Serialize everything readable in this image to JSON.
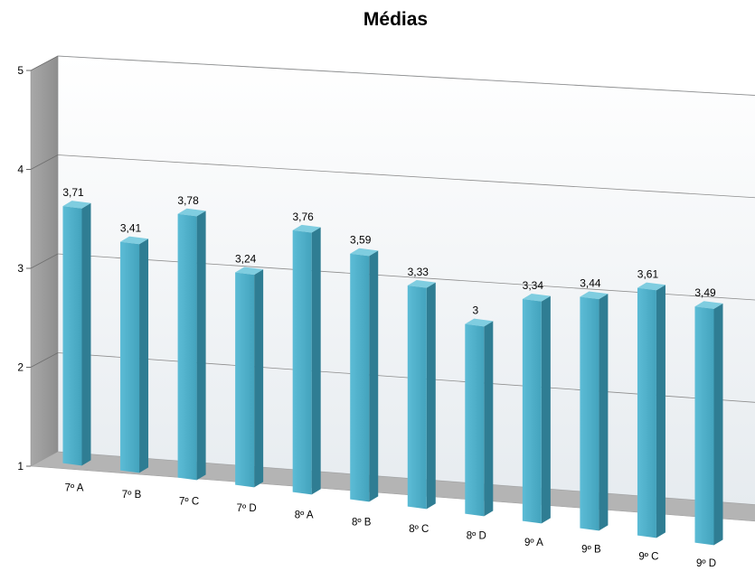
{
  "chart_data": {
    "type": "bar",
    "title": "Médias",
    "xlabel": "",
    "ylabel": "",
    "ylim": [
      1,
      5
    ],
    "y_ticks": [
      1,
      2,
      3,
      4,
      5
    ],
    "grid": true,
    "legend": "none",
    "categories": [
      "7º A",
      "7º B",
      "7º C",
      "7º D",
      "8º A",
      "8º B",
      "8º C",
      "8º D",
      "9º A",
      "9º B",
      "9º C",
      "9º D"
    ],
    "values": [
      3.71,
      3.41,
      3.78,
      3.24,
      3.76,
      3.59,
      3.33,
      3.0,
      3.34,
      3.44,
      3.61,
      3.49
    ],
    "data_labels": [
      "3,71",
      "3,41",
      "3,78",
      "3,24",
      "3,76",
      "3,59",
      "3,33",
      "3",
      "3,34",
      "3,44",
      "3,61",
      "3,49"
    ],
    "colors": {
      "bar_front": "#4bacc6",
      "bar_side": "#2f7d93",
      "bar_top": "#7fcde0"
    }
  }
}
